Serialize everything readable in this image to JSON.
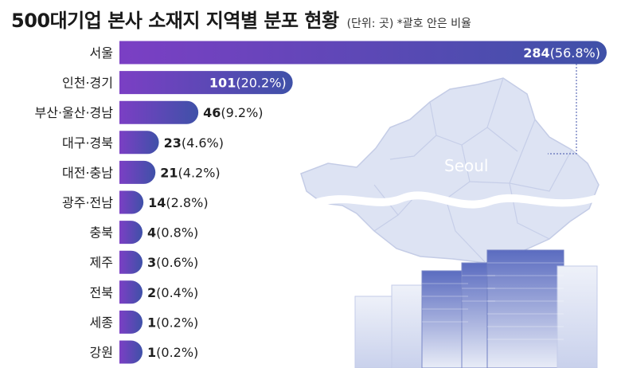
{
  "title": "500대기업 본사 소재지 지역별 분포 현황",
  "note": "(단위: 곳) *괄호 안은 비율",
  "map_label": "Seoul",
  "colors": {
    "bar_start": "#7b3fc4",
    "bar_end": "#3f51a8",
    "map": "#dde3f3",
    "map_line": "#c4cce6",
    "river": "#ffffff",
    "building": "#4a5bb0",
    "building_light": "#e6eaf6"
  },
  "chart_data": {
    "type": "bar",
    "orientation": "horizontal",
    "title": "500대기업 본사 소재지 지역별 분포 현황",
    "unit": "곳",
    "categories": [
      "서울",
      "인천·경기",
      "부산·울산·경남",
      "대구·경북",
      "대전·충남",
      "광주·전남",
      "충북",
      "제주",
      "전북",
      "세종",
      "강원"
    ],
    "values": [
      284,
      101,
      46,
      23,
      21,
      14,
      4,
      3,
      2,
      1,
      1
    ],
    "percent_labels": [
      "(56.8%)",
      "(20.2%)",
      "(9.2%)",
      "(4.6%)",
      "(4.2%)",
      "(2.8%)",
      "(0.8%)",
      "(0.6%)",
      "(0.4%)",
      "(0.2%)",
      "(0.2%)"
    ],
    "value_labels_inside": [
      true,
      true,
      false,
      false,
      false,
      false,
      false,
      false,
      false,
      false,
      false
    ]
  }
}
